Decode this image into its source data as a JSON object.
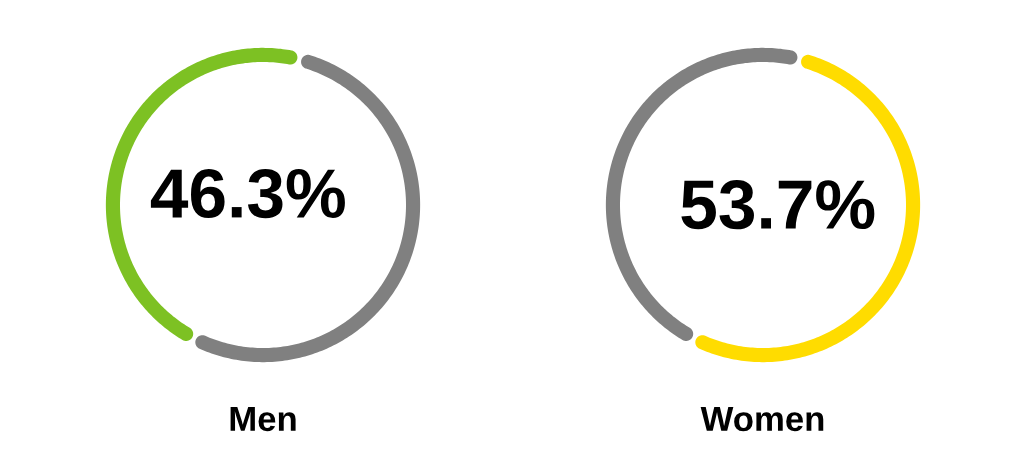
{
  "chart_data": [
    {
      "type": "donut",
      "title": "Men",
      "categories": [
        null,
        null
      ],
      "values": [
        53.7,
        46.3
      ],
      "colors": [
        "#808080",
        "#7dc123"
      ],
      "value_labels": [
        null,
        "46.3%"
      ]
    },
    {
      "type": "donut",
      "title": "Women",
      "categories": [
        null,
        null
      ],
      "values": [
        53.7,
        46.3
      ],
      "colors": [
        "#ffdc00",
        "#808080"
      ],
      "value_labels": [
        "53.7%",
        null
      ]
    }
  ]
}
